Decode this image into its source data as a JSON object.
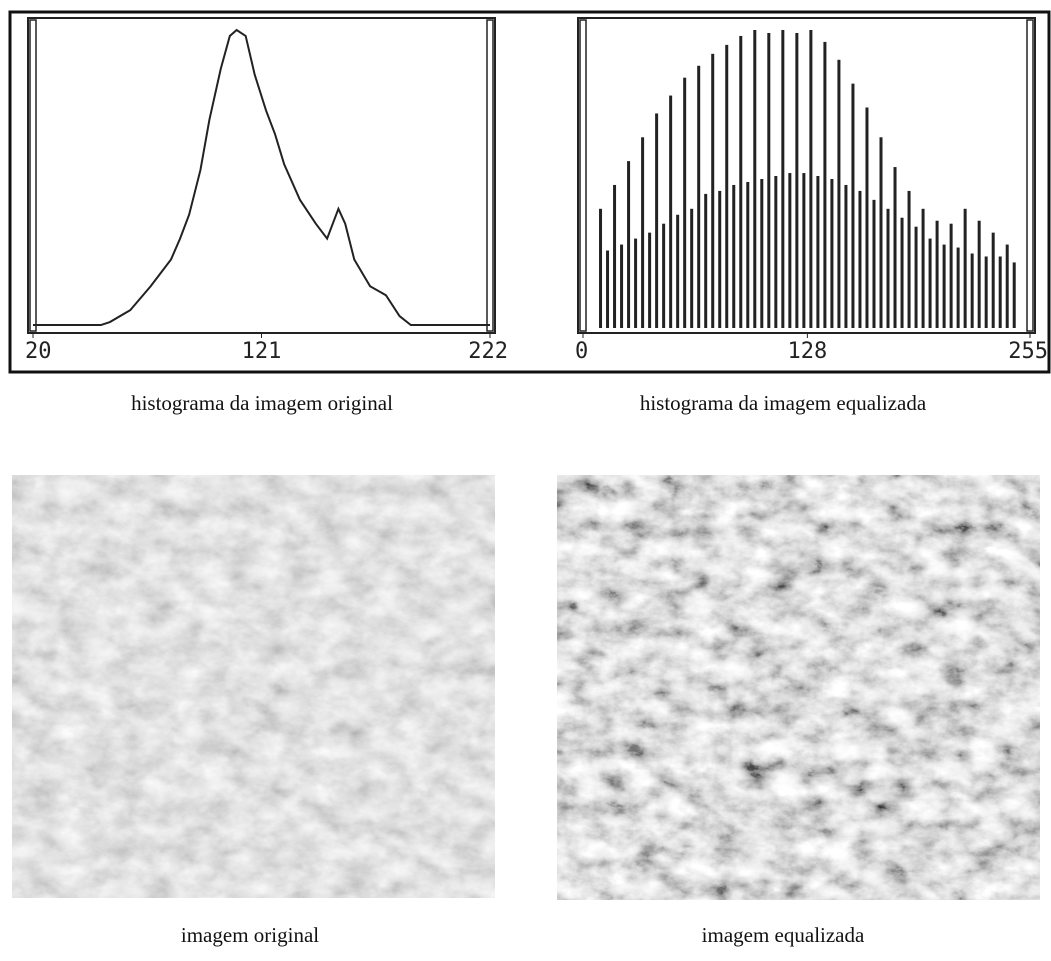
{
  "chart_data": [
    {
      "type": "line",
      "title": "histograma da imagem original",
      "color": "#222222",
      "x": [
        20,
        36,
        50,
        54,
        63,
        72,
        81,
        85,
        89,
        94,
        98,
        103,
        107,
        110,
        114,
        118,
        123,
        127,
        131,
        138,
        145,
        150,
        155,
        158,
        162,
        169,
        176,
        182,
        187,
        204,
        222
      ],
      "values": [
        1,
        1,
        1,
        2,
        6,
        14,
        23,
        30,
        38,
        53,
        70,
        87,
        98,
        100,
        98,
        85,
        73,
        65,
        55,
        43,
        35,
        30,
        40,
        35,
        23,
        14,
        11,
        4,
        1,
        1,
        1
      ],
      "xlim": [
        20,
        222
      ],
      "xticks": [
        20,
        121,
        222
      ],
      "ylim": [
        0,
        100
      ]
    },
    {
      "type": "bar",
      "title": "histograma da imagem equalizada",
      "color": "#222222",
      "x": [
        10,
        14,
        18,
        22,
        26,
        30,
        34,
        38,
        42,
        46,
        50,
        54,
        58,
        62,
        66,
        70,
        74,
        78,
        82,
        86,
        90,
        94,
        98,
        102,
        106,
        110,
        114,
        118,
        122,
        126,
        130,
        134,
        138,
        142,
        146,
        150,
        154,
        158,
        162,
        166,
        170,
        174,
        178,
        182,
        186,
        190,
        194,
        198,
        202,
        206,
        210,
        214,
        218,
        222,
        226,
        230,
        234,
        238,
        242,
        246
      ],
      "values": [
        40,
        26,
        48,
        28,
        56,
        30,
        64,
        32,
        72,
        35,
        78,
        38,
        84,
        40,
        88,
        45,
        92,
        46,
        95,
        48,
        98,
        49,
        100,
        50,
        99,
        51,
        100,
        52,
        99,
        52,
        100,
        51,
        96,
        50,
        90,
        48,
        82,
        46,
        74,
        43,
        64,
        40,
        54,
        37,
        46,
        34,
        40,
        30,
        36,
        28,
        35,
        27,
        40,
        25,
        36,
        24,
        32,
        24,
        28,
        22
      ],
      "xlim": [
        0,
        255
      ],
      "xticks": [
        0,
        128,
        255
      ],
      "ylim": [
        0,
        100
      ]
    }
  ],
  "images": [
    {
      "caption": "imagem original"
    },
    {
      "caption": "imagem equalizada"
    }
  ]
}
